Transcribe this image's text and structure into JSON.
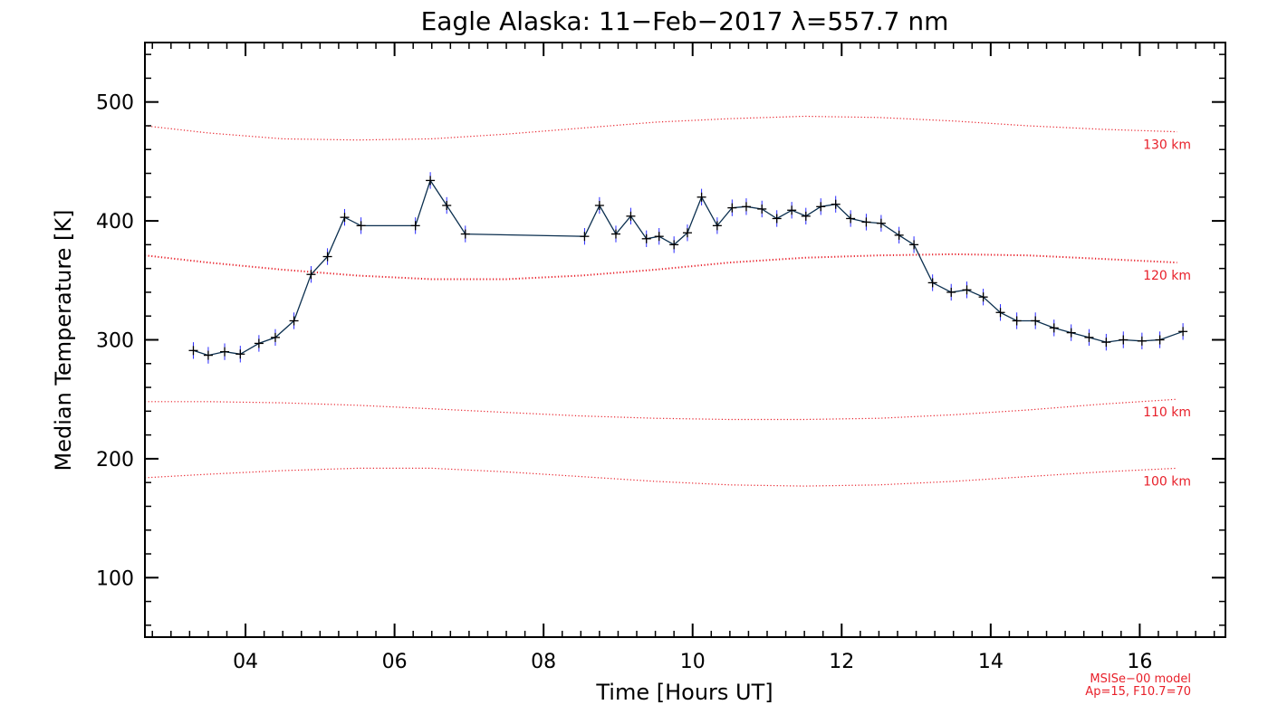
{
  "chart_data": {
    "type": "line",
    "title": "Eagle Alaska: 11−Feb−2017 λ=557.7 nm",
    "xlabel": "Time [Hours UT]",
    "ylabel": "Median Temperature [K]",
    "xlim": [
      2.65,
      17.15
    ],
    "ylim": [
      50,
      550
    ],
    "x_ticks": [
      4,
      6,
      8,
      10,
      12,
      14,
      16
    ],
    "x_tick_labels": [
      "04",
      "06",
      "08",
      "10",
      "12",
      "14",
      "16"
    ],
    "y_ticks": [
      100,
      200,
      300,
      400,
      500
    ],
    "y_tick_labels": [
      "100",
      "200",
      "300",
      "400",
      "500"
    ],
    "grid": false,
    "series": [
      {
        "color": "#0b2f4f",
        "marker": "plus",
        "x": [
          3.3,
          3.5,
          3.72,
          3.93,
          4.18,
          4.4,
          4.65,
          4.88,
          5.1,
          5.33,
          5.55,
          6.28,
          6.48,
          6.7,
          6.95,
          8.55,
          8.75,
          8.97,
          9.17,
          9.38,
          9.55,
          9.75,
          9.93,
          10.12,
          10.33,
          10.53,
          10.72,
          10.93,
          11.13,
          11.33,
          11.52,
          11.72,
          11.92,
          12.12,
          12.33,
          12.53,
          12.77,
          12.97,
          13.22,
          13.47,
          13.68,
          13.9,
          14.13,
          14.35,
          14.6,
          14.85,
          15.08,
          15.32,
          15.55,
          15.78,
          16.03,
          16.27,
          16.58
        ],
        "y": [
          291,
          287,
          290,
          288,
          297,
          302,
          316,
          355,
          370,
          403,
          396,
          396,
          434,
          413,
          389,
          387,
          413,
          389,
          404,
          385,
          387,
          380,
          390,
          420,
          396,
          411,
          412,
          410,
          402,
          409,
          404,
          412,
          414,
          402,
          399,
          398,
          388,
          380,
          348,
          340,
          342,
          336,
          323,
          316,
          316,
          310,
          306,
          302,
          298,
          300,
          299,
          300,
          307
        ],
        "error": 7
      }
    ],
    "model_curves": [
      {
        "label": "130 km",
        "color": "#e8202a",
        "x": [
          2.65,
          3.5,
          4.5,
          5.5,
          6.5,
          7.5,
          8.5,
          9.5,
          10.5,
          11.5,
          12.5,
          13.5,
          14.5,
          15.5,
          16.5
        ],
        "y": [
          480,
          474,
          469,
          468,
          469,
          473,
          478,
          483,
          486,
          488,
          487,
          484,
          480,
          477,
          475
        ]
      },
      {
        "label": "120 km",
        "color": "#e8202a",
        "x": [
          2.65,
          3.5,
          4.5,
          5.5,
          6.5,
          7.5,
          8.5,
          9.5,
          10.5,
          11.5,
          12.5,
          13.5,
          14.5,
          15.5,
          16.5
        ],
        "y": [
          371,
          365,
          359,
          354,
          351,
          351,
          354,
          359,
          365,
          369,
          371,
          372,
          371,
          368,
          365
        ]
      },
      {
        "label": "110 km",
        "color": "#e8202a",
        "x": [
          2.65,
          3.5,
          4.5,
          5.5,
          6.5,
          7.5,
          8.5,
          9.5,
          10.5,
          11.5,
          12.5,
          13.5,
          14.5,
          15.5,
          16.5
        ],
        "y": [
          248,
          248,
          247,
          245,
          242,
          239,
          236,
          234,
          233,
          233,
          234,
          237,
          241,
          246,
          250
        ]
      },
      {
        "label": "100 km",
        "color": "#e8202a",
        "x": [
          2.65,
          3.5,
          4.5,
          5.5,
          6.5,
          7.5,
          8.5,
          9.5,
          10.5,
          11.5,
          12.5,
          13.5,
          14.5,
          15.5,
          16.5
        ],
        "y": [
          184,
          187,
          190,
          192,
          192,
          189,
          185,
          181,
          178,
          177,
          178,
          181,
          185,
          189,
          192
        ]
      }
    ],
    "annotations": [
      "MSISe−00 model",
      "Ap=15, F10.7=70"
    ]
  }
}
